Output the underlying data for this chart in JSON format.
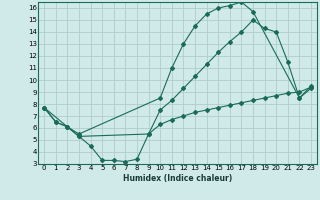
{
  "xlabel": "Humidex (Indice chaleur)",
  "bg_color": "#d0eaea",
  "grid_color": "#b0cccc",
  "line_color": "#1a6b5a",
  "spine_color": "#1a6b5a",
  "xlim": [
    -0.5,
    23.5
  ],
  "ylim": [
    3,
    16.5
  ],
  "yticks": [
    3,
    4,
    5,
    6,
    7,
    8,
    9,
    10,
    11,
    12,
    13,
    14,
    15,
    16
  ],
  "xticks": [
    0,
    1,
    2,
    3,
    4,
    5,
    6,
    7,
    8,
    9,
    10,
    11,
    12,
    13,
    14,
    15,
    16,
    17,
    18,
    19,
    20,
    21,
    22,
    23
  ],
  "line1_x": [
    0,
    1,
    2,
    3,
    10,
    11,
    12,
    13,
    14,
    15,
    16,
    17,
    18,
    22,
    23
  ],
  "line1_y": [
    7.7,
    6.5,
    6.1,
    5.5,
    8.5,
    11.0,
    13.0,
    14.5,
    15.5,
    16.0,
    16.2,
    16.5,
    15.7,
    8.5,
    9.5
  ],
  "line2_x": [
    0,
    2,
    3,
    9,
    10,
    11,
    12,
    13,
    14,
    15,
    16,
    17,
    18,
    19,
    20,
    21,
    22,
    23
  ],
  "line2_y": [
    7.7,
    6.1,
    5.3,
    5.5,
    7.5,
    8.3,
    9.3,
    10.3,
    11.3,
    12.3,
    13.2,
    14.0,
    15.0,
    14.3,
    14.0,
    11.5,
    8.5,
    9.3
  ],
  "line3_x": [
    0,
    1,
    2,
    3,
    4,
    5,
    6,
    7,
    8,
    9,
    10,
    11,
    12,
    13,
    14,
    15,
    16,
    17,
    18,
    19,
    20,
    21,
    22,
    23
  ],
  "line3_y": [
    7.7,
    6.5,
    6.1,
    5.3,
    4.5,
    3.3,
    3.3,
    3.2,
    3.4,
    5.5,
    6.3,
    6.7,
    7.0,
    7.3,
    7.5,
    7.7,
    7.9,
    8.1,
    8.3,
    8.5,
    8.7,
    8.9,
    9.0,
    9.4
  ],
  "xlabel_fontsize": 5.5,
  "tick_fontsize": 5.0
}
